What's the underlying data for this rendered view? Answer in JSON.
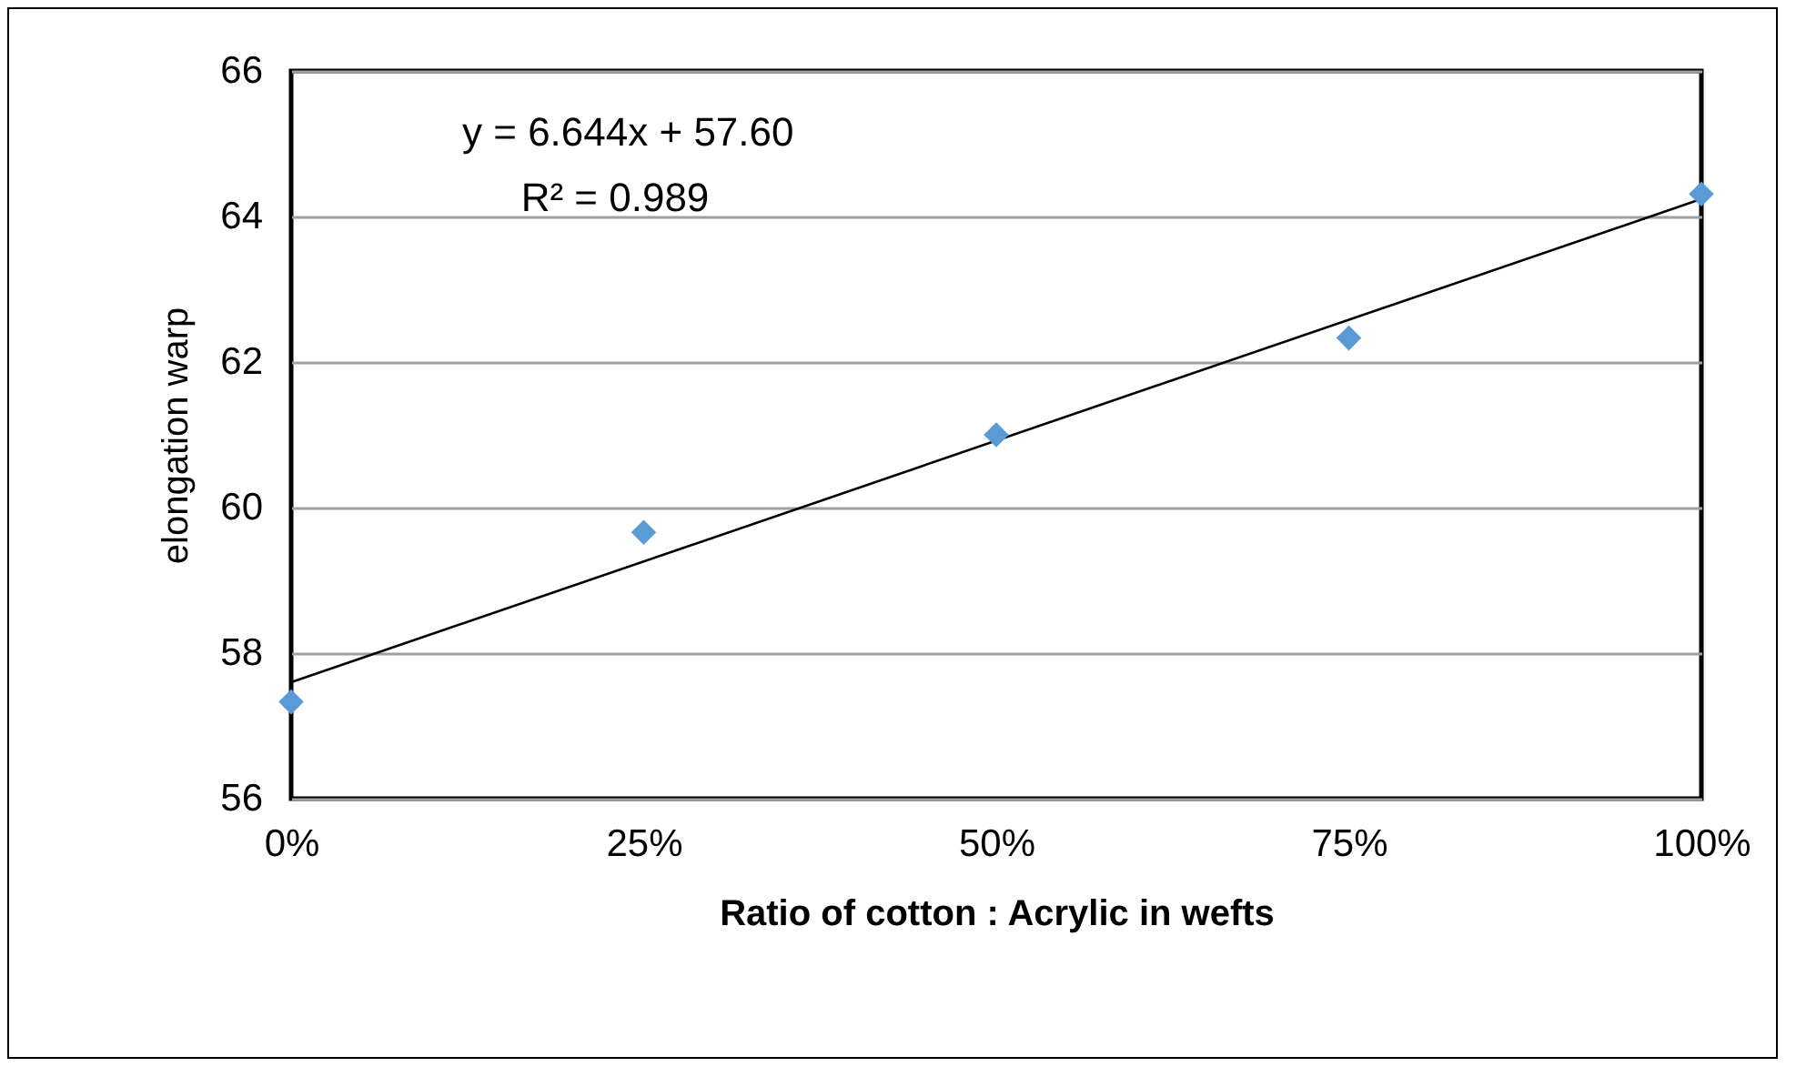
{
  "chart_data": {
    "type": "scatter",
    "xlabel": "Ratio of cotton : Acrylic in wefts",
    "ylabel": "elongation warp",
    "x": [
      0,
      0.25,
      0.5,
      0.75,
      1
    ],
    "series": [
      {
        "color": "#5b9bd5",
        "marker": "diamond",
        "values": [
          57.33,
          59.66,
          61.0,
          62.33,
          64.31
        ]
      },
      {
        "type": "line",
        "color": "#000000",
        "marker": "none",
        "x": [
          0,
          1
        ],
        "values": [
          57.6,
          64.24
        ]
      }
    ],
    "xlim": [
      0,
      1
    ],
    "xticks": [
      {
        "value": 0,
        "label": "0%"
      },
      {
        "value": 0.25,
        "label": "25%"
      },
      {
        "value": 0.5,
        "label": "50%"
      },
      {
        "value": 0.75,
        "label": "75%"
      },
      {
        "value": 1,
        "label": "100%"
      }
    ],
    "ylim": [
      56,
      66
    ],
    "yticks": [
      56,
      58,
      60,
      62,
      64,
      66
    ],
    "grid": "y",
    "annotations": [
      "y = 6.644x + 57.60",
      "R² = 0.989"
    ]
  }
}
